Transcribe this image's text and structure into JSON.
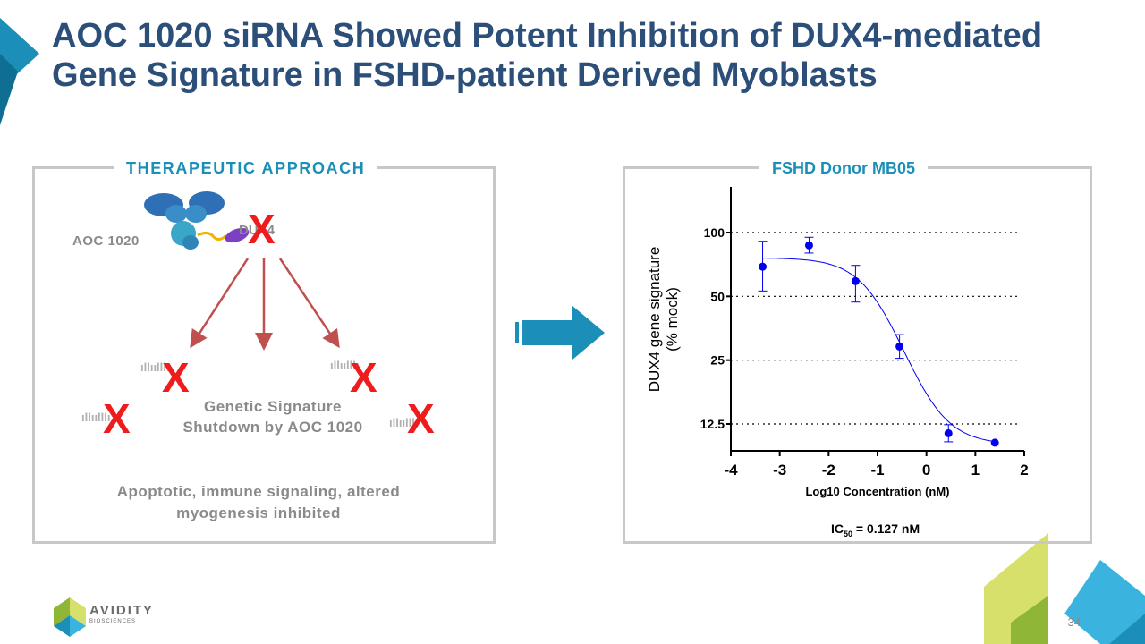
{
  "slide": {
    "title": "AOC 1020 siRNA Showed Potent Inhibition of DUX4-mediated Gene Signature in FSHD-patient Derived Myoblasts",
    "page_number": "34",
    "brand": "AVIDITY",
    "brand_sub": "BIOSCIENCES"
  },
  "left_panel": {
    "heading": "THERAPEUTIC APPROACH",
    "aoc_label": "AOC 1020",
    "dux4_label": "DUX4",
    "signature_line1": "Genetic Signature",
    "signature_line2": "Shutdown by AOC 1020",
    "outcome_line1": "Apoptotic, immune signaling, altered",
    "outcome_line2": "myogenesis inhibited",
    "x_mark": "X"
  },
  "right_panel": {
    "heading": "FSHD Donor MB05",
    "ic50_prefix": "IC",
    "ic50_sub": "50",
    "ic50_value": " = 0.127 nM"
  },
  "colors": {
    "title": "#2c4f7a",
    "accent": "#1b8fb8",
    "arrow_red": "#c0504d",
    "x_red": "#ee1c1c",
    "data_blue": "#0000ee",
    "logo_green": "#c8d84a"
  },
  "chart_data": {
    "type": "scatter",
    "xlabel": "Log10 Concentration (nM)",
    "ylabel_line1": "DUX4 gene signature",
    "ylabel_line2": "(% mock)",
    "xlim": [
      -4,
      2
    ],
    "x_ticks": [
      -4,
      -3,
      -2,
      -1,
      0,
      1,
      2
    ],
    "y_ticks": [
      12.5,
      25,
      50,
      100
    ],
    "y_tick_labels": [
      "12.5",
      "25",
      "50",
      "100"
    ],
    "y_scale": "log",
    "gridlines": "dotted horizontal at y ticks",
    "series": [
      {
        "points": [
          {
            "x": -3.35,
            "y": 69,
            "err_low": 53,
            "err_high": 91
          },
          {
            "x": -2.4,
            "y": 87,
            "err_low": 80,
            "err_high": 95
          },
          {
            "x": -1.45,
            "y": 59,
            "err_low": 47,
            "err_high": 70
          },
          {
            "x": -0.55,
            "y": 29,
            "err_low": 25.5,
            "err_high": 33
          },
          {
            "x": 0.45,
            "y": 11.3,
            "err_low": 10.3,
            "err_high": 12.4
          },
          {
            "x": 1.4,
            "y": 10.2,
            "err_low": 10.2,
            "err_high": 10.2
          }
        ],
        "fit": {
          "top": 76,
          "bottom": 10,
          "log_ic50": -0.9,
          "hill": 1.0
        }
      }
    ]
  }
}
